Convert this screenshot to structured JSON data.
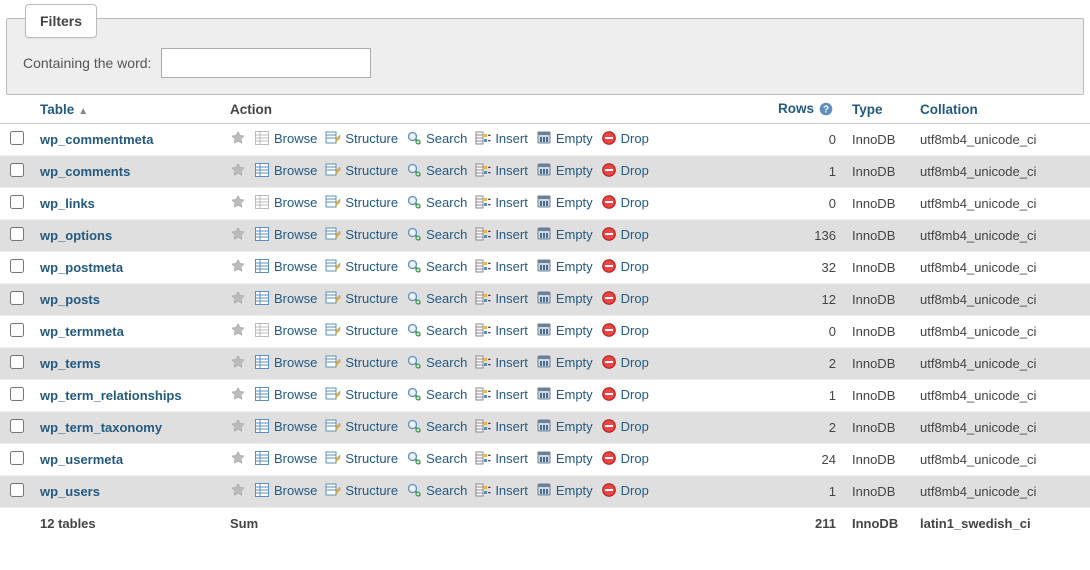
{
  "filters": {
    "tab_label": "Filters",
    "containing_label": "Containing the word:",
    "containing_value": ""
  },
  "colors": {
    "link": "#235a81",
    "row_even": "#dfdfdf",
    "panel_bg": "#eee"
  },
  "headers": {
    "table": "Table",
    "action": "Action",
    "rows": "Rows",
    "type": "Type",
    "collation": "Collation"
  },
  "action_labels": {
    "browse": "Browse",
    "structure": "Structure",
    "search": "Search",
    "insert": "Insert",
    "empty": "Empty",
    "drop": "Drop"
  },
  "tables": [
    {
      "name": "wp_commentmeta",
      "rows": 0,
      "type": "InnoDB",
      "collation": "utf8mb4_unicode_ci"
    },
    {
      "name": "wp_comments",
      "rows": 1,
      "type": "InnoDB",
      "collation": "utf8mb4_unicode_ci"
    },
    {
      "name": "wp_links",
      "rows": 0,
      "type": "InnoDB",
      "collation": "utf8mb4_unicode_ci"
    },
    {
      "name": "wp_options",
      "rows": 136,
      "type": "InnoDB",
      "collation": "utf8mb4_unicode_ci"
    },
    {
      "name": "wp_postmeta",
      "rows": 32,
      "type": "InnoDB",
      "collation": "utf8mb4_unicode_ci"
    },
    {
      "name": "wp_posts",
      "rows": 12,
      "type": "InnoDB",
      "collation": "utf8mb4_unicode_ci"
    },
    {
      "name": "wp_termmeta",
      "rows": 0,
      "type": "InnoDB",
      "collation": "utf8mb4_unicode_ci"
    },
    {
      "name": "wp_terms",
      "rows": 2,
      "type": "InnoDB",
      "collation": "utf8mb4_unicode_ci"
    },
    {
      "name": "wp_term_relationships",
      "rows": 1,
      "type": "InnoDB",
      "collation": "utf8mb4_unicode_ci"
    },
    {
      "name": "wp_term_taxonomy",
      "rows": 2,
      "type": "InnoDB",
      "collation": "utf8mb4_unicode_ci"
    },
    {
      "name": "wp_usermeta",
      "rows": 24,
      "type": "InnoDB",
      "collation": "utf8mb4_unicode_ci"
    },
    {
      "name": "wp_users",
      "rows": 1,
      "type": "InnoDB",
      "collation": "utf8mb4_unicode_ci"
    }
  ],
  "summary": {
    "label": "12 tables",
    "sum_label": "Sum",
    "rows": 211,
    "type": "InnoDB",
    "collation": "latin1_swedish_ci"
  }
}
